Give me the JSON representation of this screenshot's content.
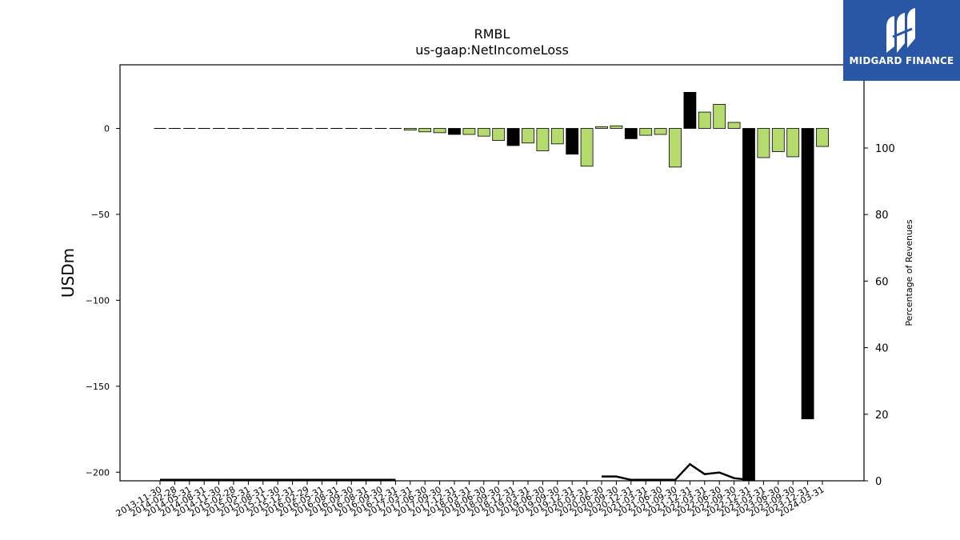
{
  "chart_data": {
    "type": "bar",
    "title": "RMBL",
    "subtitle": "us-gaap:NetIncomeLoss",
    "ylabel": "USDm",
    "y2label": "Percentage of Revenues",
    "ylim": [
      -205,
      37
    ],
    "y2lim": [
      0,
      125
    ],
    "yticks": [
      0,
      -50,
      -100,
      -150,
      -200
    ],
    "y2ticks": [
      0,
      20,
      40,
      60,
      80,
      100
    ],
    "categories": [
      "2013-11-30",
      "2014-02-28",
      "2014-05-31",
      "2014-08-31",
      "2014-11-30",
      "2015-02-28",
      "2015-05-31",
      "2015-08-31",
      "2015-11-30",
      "2015-12-31",
      "2016-02-29",
      "2016-05-31",
      "2016-08-31",
      "2016-09-30",
      "2016-08-31",
      "2016-09-30",
      "2016-12-31",
      "2017-03-31",
      "2017-06-30",
      "2017-09-30",
      "2017-12-31",
      "2018-03-31",
      "2018-06-30",
      "2018-09-30",
      "2018-12-31",
      "2019-03-31",
      "2019-06-30",
      "2019-09-30",
      "2019-12-31",
      "2020-03-31",
      "2020-06-30",
      "2020-09-30",
      "2020-12-31",
      "2021-03-31",
      "2021-06-30",
      "2021-09-30",
      "2021-12-31",
      "2022-03-31",
      "2022-06-30",
      "2022-09-30",
      "2022-12-31",
      "2023-03-31",
      "2023-06-30",
      "2023-09-30",
      "2023-12-31",
      "2024-03-31"
    ],
    "series": [
      {
        "values": [
          0,
          0,
          0,
          0,
          0,
          0,
          0,
          0,
          0,
          0,
          0,
          0,
          0,
          0,
          0,
          0,
          0,
          -1,
          -2,
          -2.5,
          -3.5,
          -3.5,
          -4.5,
          -7,
          -10,
          -8.5,
          -13,
          -9,
          -15,
          -22,
          1,
          1.5,
          -6,
          -4,
          -3.5,
          -22.5,
          21,
          9.5,
          14,
          3.5,
          -205,
          -17,
          -13.5,
          -16.5,
          -169,
          -10.5
        ],
        "kinds": [
          "dash",
          "dash",
          "dash",
          "dash",
          "dash",
          "dash",
          "dash",
          "dash",
          "dash",
          "dash",
          "dash",
          "dash",
          "dash",
          "dash",
          "dash",
          "dash",
          "dash",
          "g",
          "g",
          "g",
          "b",
          "g",
          "g",
          "g",
          "b",
          "g",
          "g",
          "g",
          "b",
          "g",
          "g",
          "g",
          "b",
          "g",
          "g",
          "g",
          "b",
          "g",
          "g",
          "g",
          "b",
          "g",
          "g",
          "g",
          "b",
          "g"
        ]
      },
      {
        "values": [
          0,
          0,
          0,
          0,
          0,
          0,
          0,
          0,
          0,
          0,
          0,
          0,
          0,
          0,
          0,
          0,
          0,
          null,
          null,
          null,
          null,
          null,
          null,
          null,
          null,
          null,
          null,
          null,
          null,
          null,
          1.3,
          1.3,
          0,
          0,
          0,
          0,
          5,
          2,
          2.5,
          0.8,
          0,
          null,
          null,
          null,
          null,
          null
        ]
      }
    ],
    "colors": {
      "green": "#b5db6f",
      "black": "#000000"
    }
  },
  "logo": {
    "text": "MIDGARD FINANCE"
  }
}
